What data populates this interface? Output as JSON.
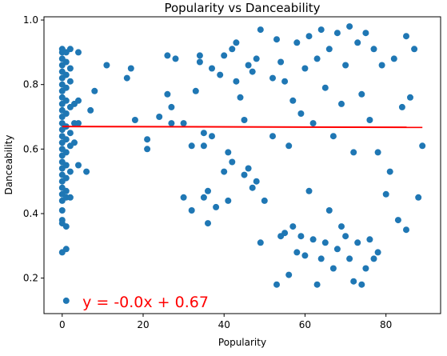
{
  "chart_data": {
    "type": "scatter",
    "title": "Popularity vs Danceability",
    "xlabel": "Popularity",
    "ylabel": "Danceability",
    "xlim": [
      -4.5,
      93.5
    ],
    "ylim": [
      0.09,
      1.01
    ],
    "xticks": [
      0,
      20,
      40,
      60,
      80
    ],
    "yticks": [
      0.2,
      0.4,
      0.6,
      0.8,
      1.0
    ],
    "xtick_labels": [
      "0",
      "20",
      "40",
      "60",
      "80"
    ],
    "ytick_labels": [
      "0.2",
      "0.4",
      "0.6",
      "0.8",
      "1.0"
    ],
    "grid": false,
    "point_color": "#1f77b4",
    "regression": {
      "slope": -0.0,
      "slope_exact": -3e-05,
      "intercept": 0.67,
      "x_range": [
        0,
        89
      ],
      "color": "#ff0000",
      "equation_label": "y = -0.0x + 0.67",
      "label_position": [
        5,
        0.11
      ]
    },
    "points": [
      [
        0,
        0.91
      ],
      [
        0,
        0.9
      ],
      [
        0,
        0.88
      ],
      [
        0,
        0.86
      ],
      [
        0,
        0.84
      ],
      [
        0,
        0.82
      ],
      [
        0,
        0.8
      ],
      [
        0,
        0.78
      ],
      [
        0,
        0.76
      ],
      [
        0,
        0.74
      ],
      [
        0,
        0.72
      ],
      [
        0,
        0.7
      ],
      [
        0,
        0.68
      ],
      [
        0,
        0.66
      ],
      [
        0,
        0.64
      ],
      [
        0,
        0.62
      ],
      [
        0,
        0.6
      ],
      [
        0,
        0.58
      ],
      [
        0,
        0.56
      ],
      [
        0,
        0.54
      ],
      [
        0,
        0.52
      ],
      [
        0,
        0.5
      ],
      [
        0,
        0.48
      ],
      [
        0,
        0.46
      ],
      [
        0,
        0.44
      ],
      [
        0,
        0.41
      ],
      [
        0,
        0.38
      ],
      [
        0,
        0.37
      ],
      [
        0,
        0.28
      ],
      [
        1,
        0.9
      ],
      [
        1,
        0.87
      ],
      [
        1,
        0.83
      ],
      [
        1,
        0.79
      ],
      [
        1,
        0.75
      ],
      [
        1,
        0.71
      ],
      [
        1,
        0.67
      ],
      [
        1,
        0.63
      ],
      [
        1,
        0.59
      ],
      [
        1,
        0.55
      ],
      [
        1,
        0.51
      ],
      [
        1,
        0.47
      ],
      [
        1,
        0.45
      ],
      [
        1,
        0.36
      ],
      [
        1,
        0.29
      ],
      [
        1,
        0.13
      ],
      [
        2,
        0.91
      ],
      [
        2,
        0.85
      ],
      [
        2,
        0.81
      ],
      [
        2,
        0.73
      ],
      [
        2,
        0.65
      ],
      [
        2,
        0.61
      ],
      [
        2,
        0.53
      ],
      [
        2,
        0.45
      ],
      [
        3,
        0.74
      ],
      [
        3,
        0.68
      ],
      [
        3,
        0.62
      ],
      [
        4,
        0.9
      ],
      [
        4,
        0.75
      ],
      [
        4,
        0.68
      ],
      [
        4,
        0.55
      ],
      [
        6,
        0.53
      ],
      [
        7,
        0.72
      ],
      [
        8,
        0.78
      ],
      [
        11,
        0.86
      ],
      [
        16,
        0.82
      ],
      [
        17,
        0.85
      ],
      [
        18,
        0.69
      ],
      [
        21,
        0.63
      ],
      [
        21,
        0.6
      ],
      [
        24,
        0.7
      ],
      [
        26,
        0.89
      ],
      [
        26,
        0.77
      ],
      [
        27,
        0.73
      ],
      [
        27,
        0.68
      ],
      [
        28,
        0.88
      ],
      [
        30,
        0.68
      ],
      [
        30,
        0.45
      ],
      [
        32,
        0.61
      ],
      [
        32,
        0.41
      ],
      [
        33,
        0.78
      ],
      [
        34,
        0.89
      ],
      [
        34,
        0.87
      ],
      [
        35,
        0.65
      ],
      [
        35,
        0.61
      ],
      [
        35,
        0.45
      ],
      [
        36,
        0.47
      ],
      [
        36,
        0.37
      ],
      [
        37,
        0.85
      ],
      [
        37,
        0.64
      ],
      [
        38,
        0.42
      ],
      [
        39,
        0.83
      ],
      [
        40,
        0.89
      ],
      [
        40,
        0.53
      ],
      [
        41,
        0.59
      ],
      [
        41,
        0.44
      ],
      [
        42,
        0.91
      ],
      [
        42,
        0.56
      ],
      [
        43,
        0.93
      ],
      [
        43,
        0.81
      ],
      [
        44,
        0.76
      ],
      [
        45,
        0.69
      ],
      [
        45,
        0.52
      ],
      [
        46,
        0.86
      ],
      [
        46,
        0.54
      ],
      [
        47,
        0.84
      ],
      [
        47,
        0.48
      ],
      [
        48,
        0.88
      ],
      [
        48,
        0.5
      ],
      [
        49,
        0.97
      ],
      [
        49,
        0.31
      ],
      [
        50,
        0.44
      ],
      [
        52,
        0.82
      ],
      [
        52,
        0.64
      ],
      [
        53,
        0.94
      ],
      [
        53,
        0.18
      ],
      [
        54,
        0.87
      ],
      [
        54,
        0.33
      ],
      [
        55,
        0.81
      ],
      [
        55,
        0.34
      ],
      [
        56,
        0.61
      ],
      [
        56,
        0.21
      ],
      [
        57,
        0.75
      ],
      [
        57,
        0.36
      ],
      [
        58,
        0.93
      ],
      [
        58,
        0.28
      ],
      [
        59,
        0.71
      ],
      [
        59,
        0.33
      ],
      [
        60,
        0.85
      ],
      [
        60,
        0.27
      ],
      [
        61,
        0.95
      ],
      [
        61,
        0.47
      ],
      [
        62,
        0.68
      ],
      [
        62,
        0.32
      ],
      [
        63,
        0.88
      ],
      [
        63,
        0.18
      ],
      [
        64,
        0.97
      ],
      [
        64,
        0.26
      ],
      [
        65,
        0.79
      ],
      [
        65,
        0.31
      ],
      [
        66,
        0.91
      ],
      [
        66,
        0.41
      ],
      [
        67,
        0.64
      ],
      [
        67,
        0.23
      ],
      [
        68,
        0.96
      ],
      [
        68,
        0.29
      ],
      [
        69,
        0.74
      ],
      [
        69,
        0.36
      ],
      [
        70,
        0.86
      ],
      [
        70,
        0.33
      ],
      [
        71,
        0.98
      ],
      [
        71,
        0.26
      ],
      [
        72,
        0.59
      ],
      [
        72,
        0.19
      ],
      [
        73,
        0.93
      ],
      [
        73,
        0.31
      ],
      [
        74,
        0.77
      ],
      [
        74,
        0.18
      ],
      [
        75,
        0.96
      ],
      [
        75,
        0.23
      ],
      [
        76,
        0.69
      ],
      [
        76,
        0.32
      ],
      [
        77,
        0.91
      ],
      [
        77,
        0.26
      ],
      [
        78,
        0.59
      ],
      [
        78,
        0.28
      ],
      [
        79,
        0.86
      ],
      [
        80,
        0.46
      ],
      [
        81,
        0.53
      ],
      [
        82,
        0.88
      ],
      [
        83,
        0.38
      ],
      [
        84,
        0.73
      ],
      [
        85,
        0.95
      ],
      [
        85,
        0.35
      ],
      [
        86,
        0.76
      ],
      [
        87,
        0.91
      ],
      [
        88,
        0.45
      ],
      [
        89,
        0.61
      ]
    ]
  }
}
